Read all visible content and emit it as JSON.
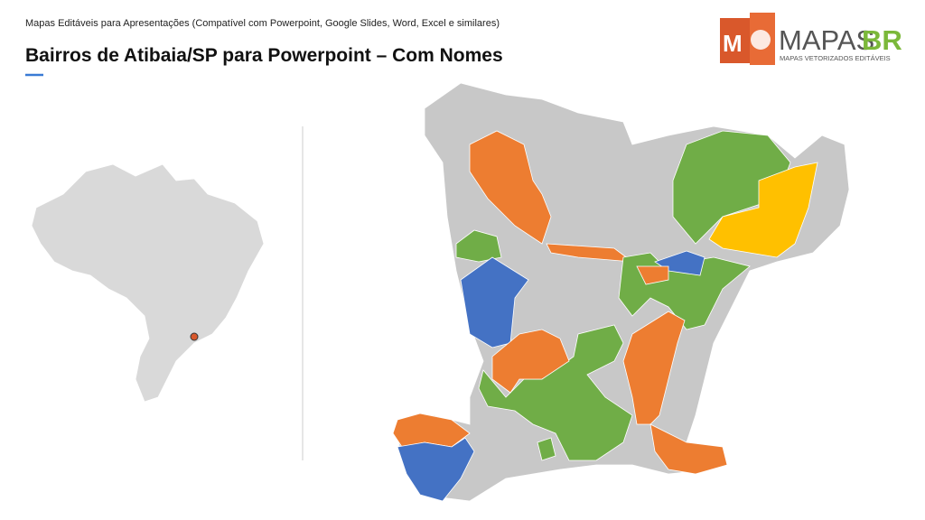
{
  "header": {
    "subtitle": "Mapas Editáveis para Apresentações (Compatível com Powerpoint, Google Slides, Word, Excel e similares)",
    "title": "Bairros de Atibaia/SP para Powerpoint – Com Nomes"
  },
  "logo": {
    "icon_letter": "M",
    "brand_main": "MAPAS",
    "brand_accent": "BR",
    "tagline": "MAPAS VETORIZADOS EDITÁVEIS"
  }
}
